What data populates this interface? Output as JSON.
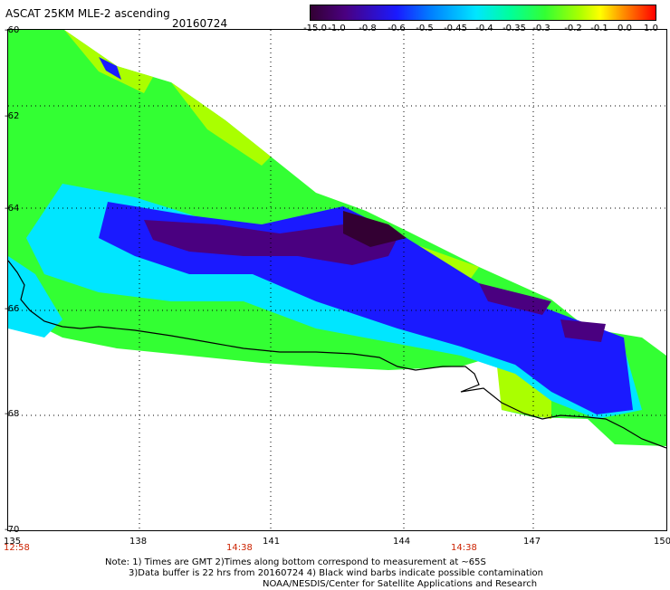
{
  "header": {
    "title": "ASCAT 25KM MLE-2 ascending",
    "date": "20160724"
  },
  "colorbar": {
    "labels": [
      "-15.0",
      "-1.0",
      "-0.8",
      "-0.6",
      "-0.5",
      "-0.45",
      "-0.4",
      "-0.35",
      "-0.3",
      "-0.2",
      "-0.1",
      "0.0",
      "1.0"
    ],
    "colors": [
      "#330033",
      "#4a0080",
      "#1a1aff",
      "#0080ff",
      "#00e6ff",
      "#00ff99",
      "#33ff33",
      "#aaff00",
      "#ffff00",
      "#ff9900",
      "#ff0000"
    ]
  },
  "map": {
    "lat_labels": [
      "-60",
      "-62",
      "-64",
      "-66",
      "-68",
      "-70"
    ],
    "lon_labels": [
      "135",
      "138",
      "141",
      "144",
      "147",
      "150"
    ],
    "time_labels": [
      "12:58",
      "14:38",
      "14:38"
    ],
    "colors": {
      "coast": "#000000",
      "land_bg": "#ffffff",
      "grid": "#000000"
    },
    "regions": [
      {
        "name": "field-green",
        "color": "#33ff33"
      },
      {
        "name": "field-lime",
        "color": "#aaff00"
      },
      {
        "name": "field-cyan",
        "color": "#00e6ff"
      },
      {
        "name": "field-blue",
        "color": "#1a1aff"
      },
      {
        "name": "field-purple",
        "color": "#4a0080"
      }
    ]
  },
  "notes": {
    "line1": "Note: 1) Times are GMT 2)Times along bottom correspond to measurement at ~65S",
    "line2": "3)Data buffer is 22 hrs from 20160724 4) Black wind barbs indicate possible contamination",
    "line3": "NOAA/NESDIS/Center for Satellite Applications and Research"
  }
}
